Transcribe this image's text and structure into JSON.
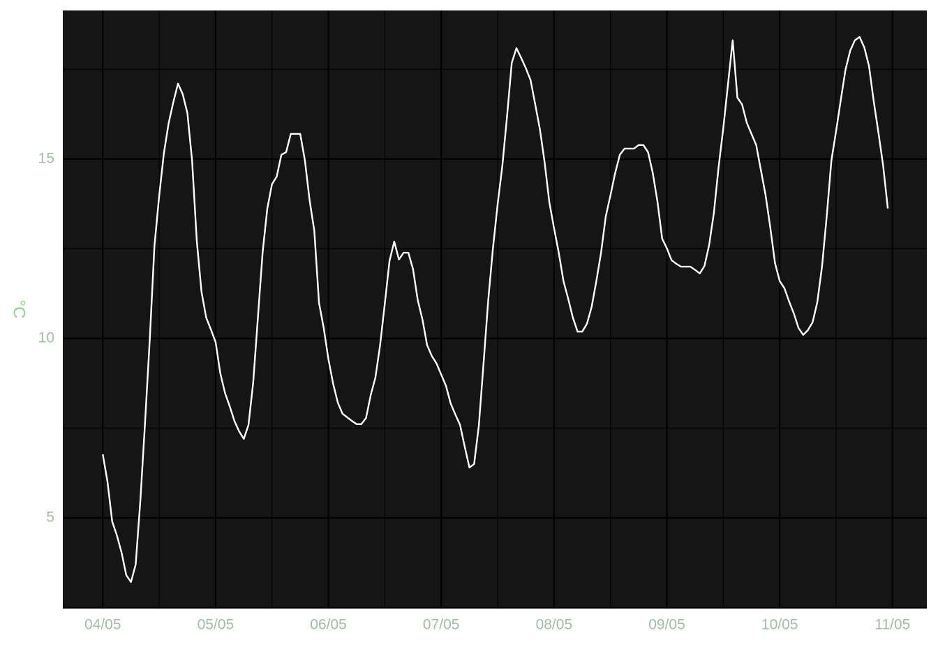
{
  "chart_data": {
    "type": "line",
    "ylabel": "°C",
    "x": [
      0,
      1,
      2,
      3,
      4,
      5,
      6,
      7,
      8,
      9,
      10,
      11,
      12,
      13,
      14,
      15,
      16,
      17,
      18,
      19,
      20,
      21,
      22,
      23,
      24,
      25,
      26,
      27,
      28,
      29,
      30,
      31,
      32,
      33,
      34,
      35,
      36,
      37,
      38,
      39,
      40,
      41,
      42,
      43,
      44,
      45,
      46,
      47,
      48,
      49,
      50,
      51,
      52,
      53,
      54,
      55,
      56,
      57,
      58,
      59,
      60,
      61,
      62,
      63,
      64,
      65,
      66,
      67,
      68,
      69,
      70,
      71,
      72,
      73,
      74,
      75,
      76,
      77,
      78,
      79,
      80,
      81,
      82,
      83,
      84,
      85,
      86,
      87,
      88,
      89,
      90,
      91,
      92,
      93,
      94,
      95,
      96,
      97,
      98,
      99,
      100,
      101,
      102,
      103,
      104,
      105,
      106,
      107,
      108,
      109,
      110,
      111,
      112,
      113,
      114,
      115,
      116,
      117,
      118,
      119,
      120,
      121,
      122,
      123,
      124,
      125,
      126,
      127,
      128,
      129,
      130,
      131,
      132,
      133,
      134,
      135,
      136,
      137,
      138,
      139,
      140,
      141,
      142,
      143,
      144,
      145,
      146,
      147,
      148,
      149,
      150,
      151,
      152,
      153,
      154,
      155,
      156,
      157,
      158,
      159,
      160,
      161,
      162,
      163,
      164,
      165,
      166,
      167
    ],
    "series": [
      {
        "color": "#ffffff",
        "values": [
          6.77,
          6.01,
          4.9,
          4.51,
          4.03,
          3.4,
          3.21,
          3.7,
          5.49,
          7.67,
          9.98,
          12.59,
          13.97,
          15.16,
          15.99,
          16.58,
          17.1,
          16.81,
          16.28,
          14.96,
          12.72,
          11.3,
          10.58,
          10.25,
          9.9,
          9.03,
          8.48,
          8.11,
          7.7,
          7.41,
          7.2,
          7.59,
          8.77,
          10.58,
          12.39,
          13.62,
          14.3,
          14.51,
          15.12,
          15.19,
          15.7,
          15.7,
          15.7,
          14.96,
          13.85,
          13.0,
          10.99,
          10.29,
          9.42,
          8.74,
          8.21,
          7.9,
          7.8,
          7.7,
          7.61,
          7.61,
          7.78,
          8.42,
          8.91,
          9.82,
          10.97,
          12.16,
          12.7,
          12.2,
          12.39,
          12.39,
          11.93,
          11.07,
          10.53,
          9.81,
          9.51,
          9.3,
          8.99,
          8.68,
          8.19,
          7.88,
          7.59,
          6.98,
          6.4,
          6.5,
          7.57,
          9.3,
          11.07,
          12.51,
          13.74,
          14.81,
          16.19,
          17.68,
          18.09,
          17.82,
          17.53,
          17.2,
          16.52,
          15.82,
          14.9,
          13.79,
          13.07,
          12.39,
          11.6,
          11.11,
          10.58,
          10.19,
          10.19,
          10.41,
          10.88,
          11.6,
          12.39,
          13.4,
          13.99,
          14.61,
          15.12,
          15.29,
          15.29,
          15.29,
          15.39,
          15.39,
          15.19,
          14.61,
          13.81,
          12.78,
          12.51,
          12.18,
          12.08,
          12.0,
          12.0,
          12.0,
          11.91,
          11.81,
          12.02,
          12.61,
          13.5,
          14.77,
          15.86,
          17.08,
          18.31,
          16.71,
          16.52,
          16.01,
          15.7,
          15.39,
          14.69,
          13.99,
          13.09,
          12.1,
          11.6,
          11.4,
          11.03,
          10.7,
          10.29,
          10.1,
          10.23,
          10.45,
          11.01,
          12.0,
          13.4,
          14.96,
          15.78,
          16.65,
          17.49,
          18.02,
          18.31,
          18.4,
          18.11,
          17.59,
          16.61,
          15.74,
          14.82,
          13.62
        ]
      }
    ],
    "xlim": [
      -8.5,
      175.3
    ],
    "xticks": [
      {
        "value": 0,
        "label": "04/05"
      },
      {
        "value": 24,
        "label": "05/05"
      },
      {
        "value": 48,
        "label": "06/05"
      },
      {
        "value": 72,
        "label": "07/05"
      },
      {
        "value": 96,
        "label": "08/05"
      },
      {
        "value": 120,
        "label": "09/05"
      },
      {
        "value": 144,
        "label": "10/05"
      },
      {
        "value": 168,
        "label": "11/05"
      }
    ],
    "ylim": [
      2.47,
      19.14
    ],
    "yticks": [
      5,
      10,
      15
    ],
    "grid": true
  }
}
